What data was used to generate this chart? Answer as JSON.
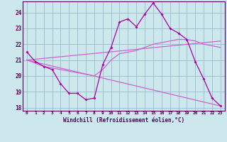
{
  "xlabel": "Windchill (Refroidissement éolien,°C)",
  "bg_color": "#cce8ec",
  "line_color1": "#aa00aa",
  "line_color2": "#cc66cc",
  "line_color3": "#880088",
  "grid_color": "#99bbcc",
  "xlim": [
    -0.5,
    23.5
  ],
  "ylim": [
    17.8,
    24.7
  ],
  "yticks": [
    18,
    19,
    20,
    21,
    22,
    23,
    24
  ],
  "xticks": [
    0,
    1,
    2,
    3,
    4,
    5,
    6,
    7,
    8,
    9,
    10,
    11,
    12,
    13,
    14,
    15,
    16,
    17,
    18,
    19,
    20,
    21,
    22,
    23
  ],
  "series1_x": [
    0,
    1,
    2,
    3,
    4,
    5,
    6,
    7,
    8,
    9,
    10,
    11,
    12,
    13,
    14,
    15,
    16,
    17,
    18,
    19,
    20,
    21,
    22,
    23
  ],
  "series1_y": [
    21.5,
    20.9,
    20.6,
    20.4,
    19.5,
    18.9,
    18.9,
    18.5,
    18.6,
    20.7,
    21.8,
    23.4,
    23.6,
    23.1,
    23.9,
    24.6,
    23.9,
    23.0,
    22.7,
    22.3,
    20.9,
    19.8,
    18.6,
    18.1
  ],
  "series2_x": [
    0,
    1,
    2,
    3,
    4,
    5,
    6,
    7,
    8,
    9,
    10,
    11,
    12,
    13,
    14,
    15,
    16,
    17,
    18,
    19,
    20,
    21,
    22,
    23
  ],
  "series2_y": [
    21.0,
    20.8,
    20.6,
    20.5,
    20.4,
    20.3,
    20.2,
    20.1,
    20.0,
    20.4,
    21.0,
    21.4,
    21.5,
    21.6,
    21.8,
    22.0,
    22.1,
    22.2,
    22.3,
    22.3,
    22.2,
    22.0,
    21.9,
    21.8
  ],
  "series3_x": [
    0,
    23
  ],
  "series3_y": [
    21.0,
    22.2
  ],
  "series4_x": [
    0,
    23
  ],
  "series4_y": [
    21.0,
    18.1
  ]
}
